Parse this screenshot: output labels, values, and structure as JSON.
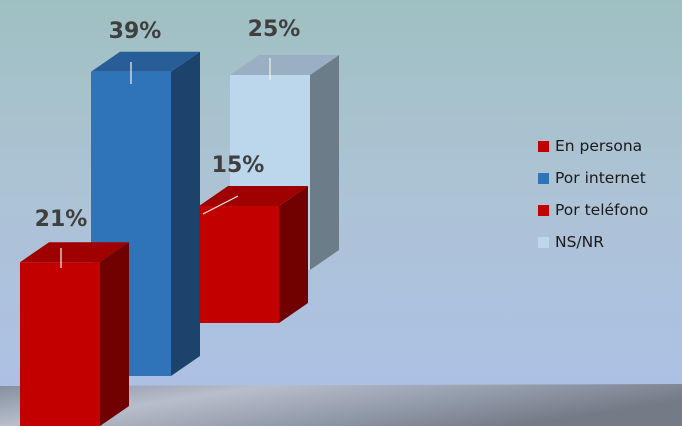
{
  "chart_data": {
    "type": "bar",
    "style": "3d-columns",
    "categories": [
      "En persona",
      "Por internet",
      "Por teléfono",
      "NS/NR"
    ],
    "values": [
      21,
      39,
      15,
      25
    ],
    "value_labels": [
      "21%",
      "39%",
      "15%",
      "25%"
    ],
    "unit": "%",
    "colors": [
      "#c20000",
      "#2f73b8",
      "#c20000",
      "#bcd6ec"
    ],
    "legend_position": "right",
    "grid": false,
    "title": "",
    "xlabel": "",
    "ylabel": ""
  },
  "legend": {
    "items": [
      {
        "label": "En persona",
        "color": "#c20000"
      },
      {
        "label": "Por internet",
        "color": "#2f73b8"
      },
      {
        "label": "Por teléfono",
        "color": "#c20000"
      },
      {
        "label": "NS/NR",
        "color": "#bcd6ec"
      }
    ]
  }
}
